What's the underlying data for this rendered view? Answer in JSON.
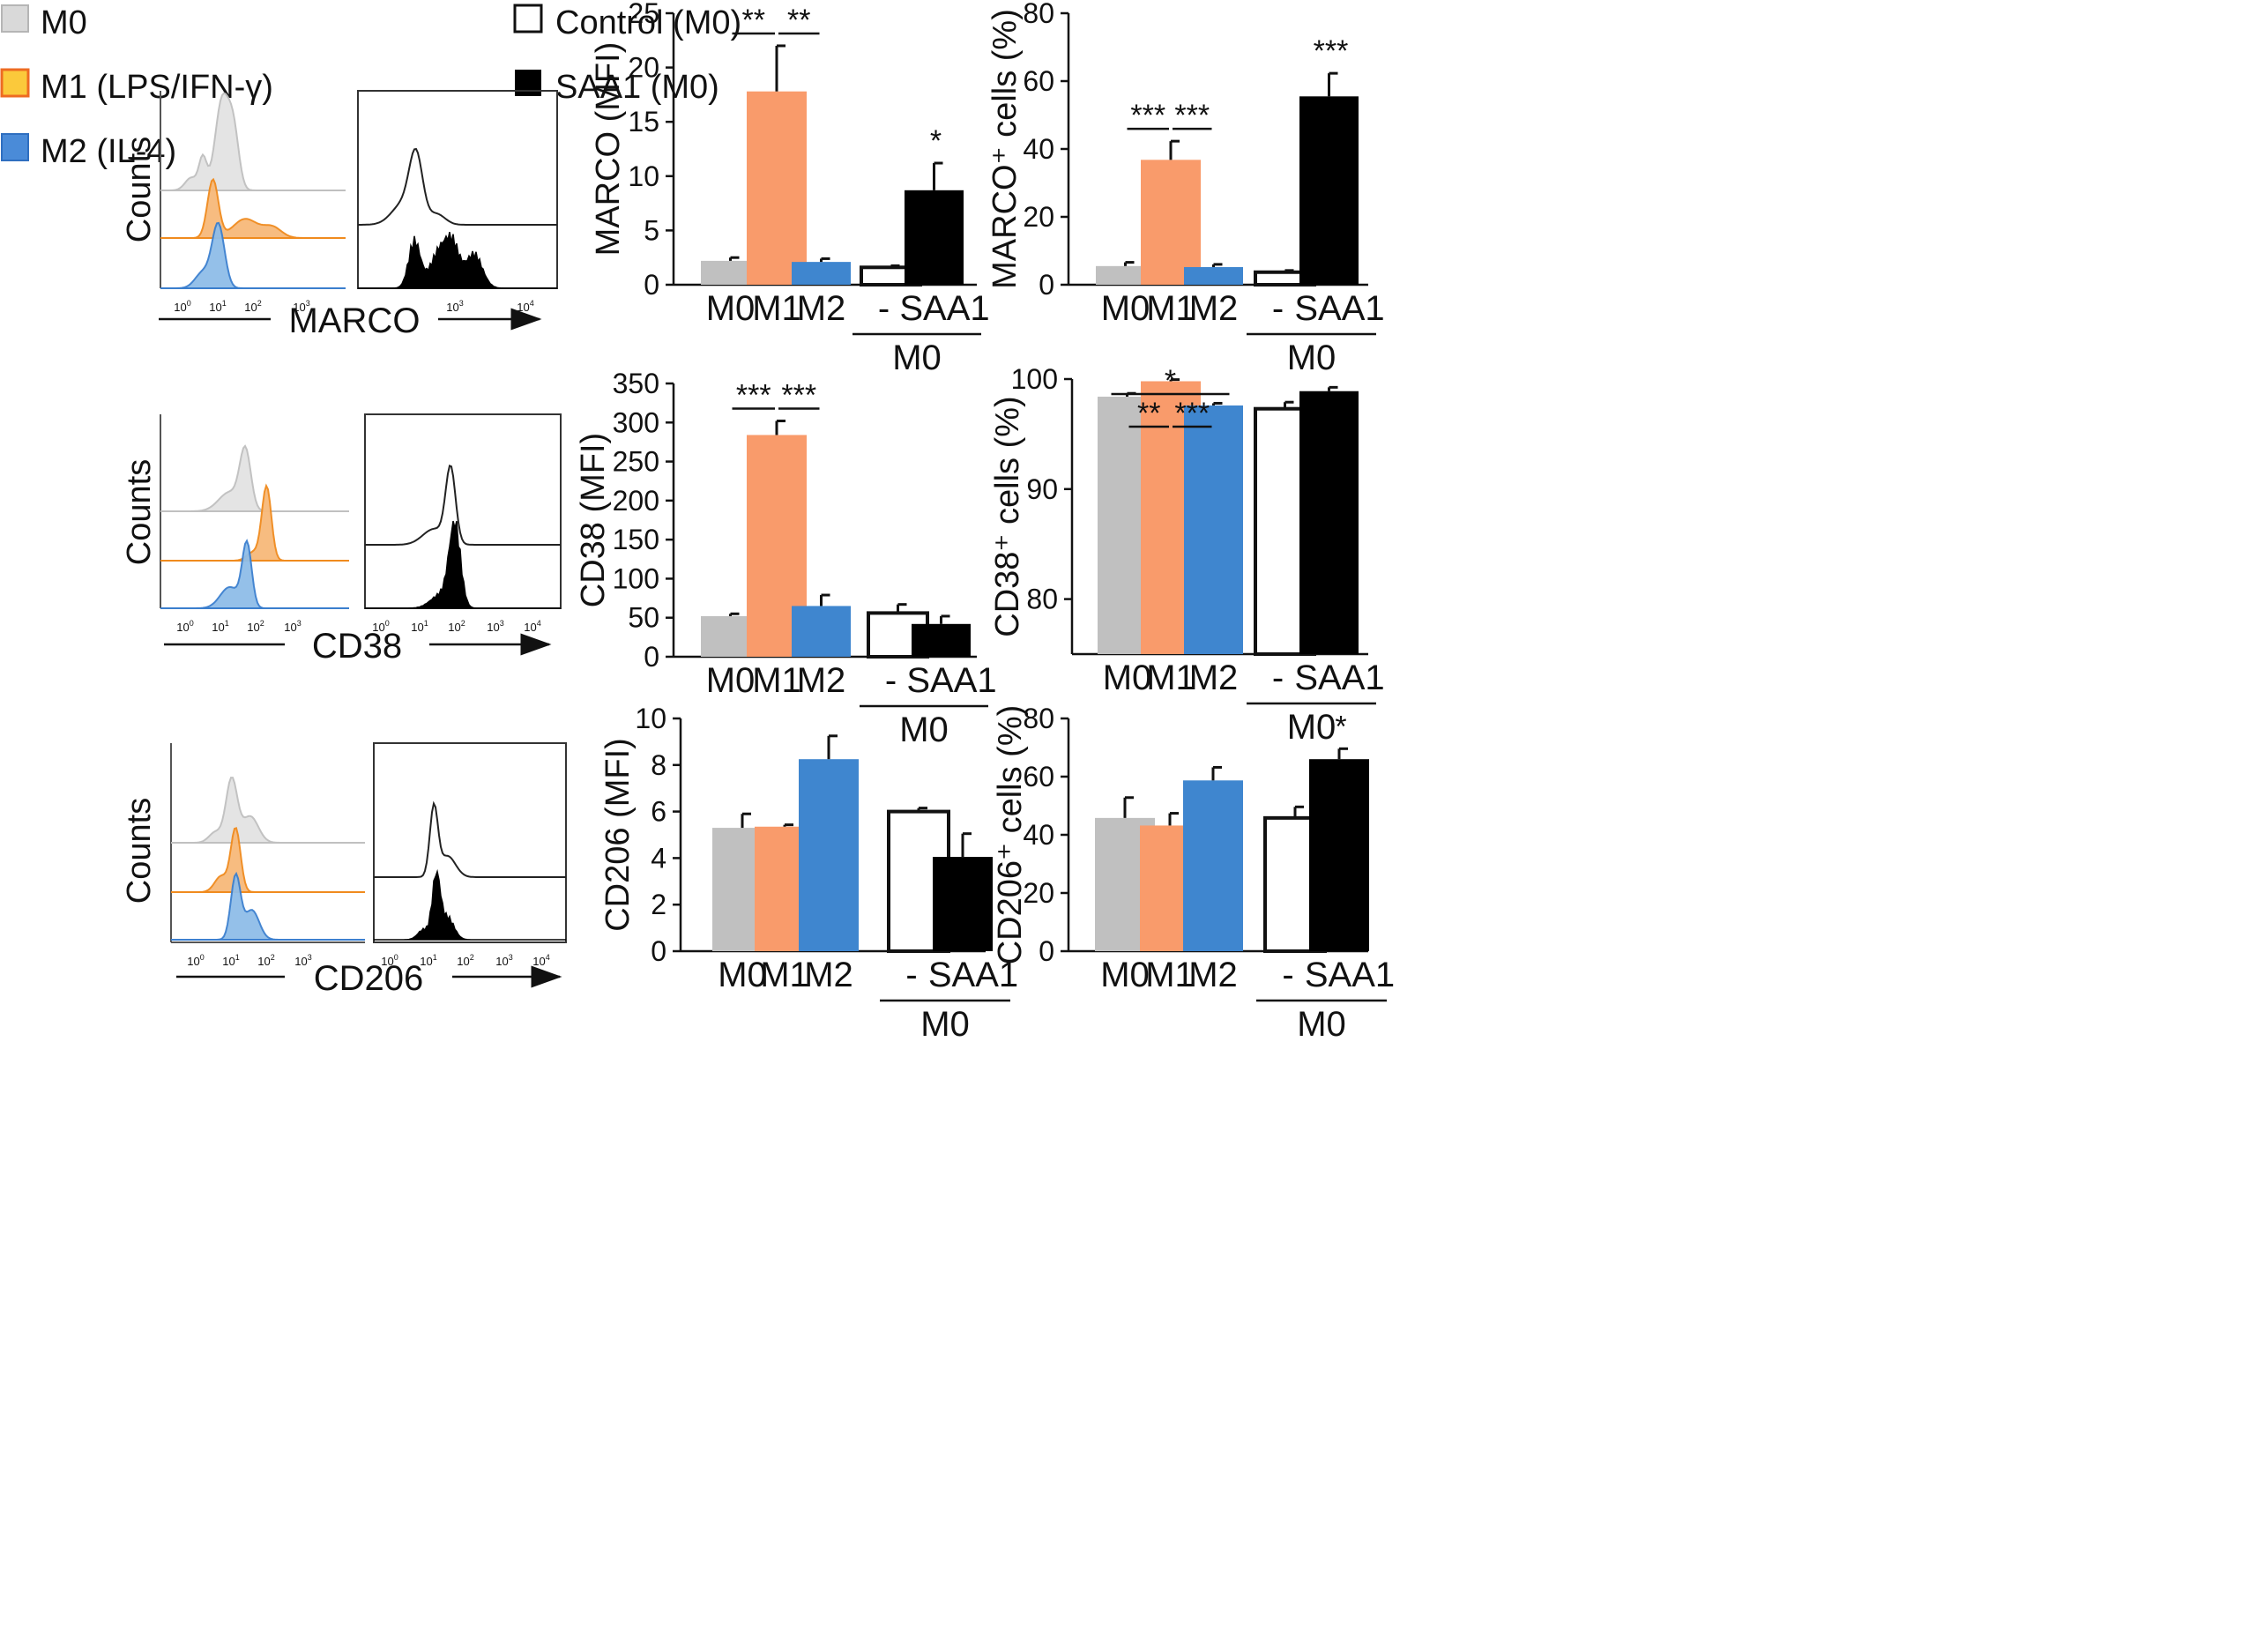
{
  "colors": {
    "M0": "#c0c0c0",
    "M1": "#f99b6b",
    "M2": "#3f86cf",
    "Control": "#ffffff",
    "SAA1": "#000000",
    "m1_outline": "#f08a1c",
    "m1_fill": "#f7b97a",
    "m0_fill": "#e3e3e3",
    "m2_fill": "#8fbde8"
  },
  "legend": {
    "items": [
      {
        "key": "M0",
        "label": "M0"
      },
      {
        "key": "M1",
        "label": "M1 (LPS/IFN-γ)"
      },
      {
        "key": "M2",
        "label": "M2 (IL-4)"
      },
      {
        "key": "Control",
        "label": "Control (M0)"
      },
      {
        "key": "SAA1",
        "label": "SAA1 (M0)"
      }
    ]
  },
  "histograms": [
    {
      "marker": "MARCO",
      "ylabel": "Counts",
      "ticks": [
        "10",
        "10",
        "10",
        "10",
        "10",
        "10"
      ],
      "exponents": [
        "0",
        "1",
        "2",
        "3",
        "3",
        "4"
      ]
    },
    {
      "marker": "CD38",
      "ylabel": "Counts",
      "ticks": [
        "10",
        "10",
        "10",
        "10",
        "10",
        "10",
        "10",
        "10",
        "10"
      ],
      "exponents": [
        "0",
        "1",
        "2",
        "3",
        "0",
        "1",
        "2",
        "3",
        "4"
      ]
    },
    {
      "marker": "CD206",
      "ylabel": "Counts",
      "ticks": [
        "10",
        "10",
        "10",
        "10",
        "10",
        "10",
        "10",
        "10",
        "10"
      ],
      "exponents": [
        "0",
        "1",
        "2",
        "3",
        "0",
        "1",
        "2",
        "3",
        "4"
      ]
    }
  ],
  "chart_data": [
    {
      "id": "marco-mfi",
      "type": "bar",
      "ylabel": "MARCO (MFI)",
      "ylim": [
        0,
        25
      ],
      "yticks": [
        0,
        5,
        10,
        15,
        20,
        25
      ],
      "categories": [
        "M0",
        "M1",
        "M2",
        "-",
        "SAA1"
      ],
      "group_label": "M0",
      "values": [
        2.2,
        17.8,
        2.1,
        1.6,
        8.7
      ],
      "errors": [
        0.3,
        4.2,
        0.3,
        0.15,
        2.5
      ],
      "significance": [
        {
          "from": 0,
          "to": 1,
          "label": "**"
        },
        {
          "from": 1,
          "to": 2,
          "label": "**"
        },
        {
          "over": 4,
          "label": "*"
        }
      ]
    },
    {
      "id": "marco-pct",
      "type": "bar",
      "ylabel": "MARCO⁺ cells (%)",
      "ylim": [
        0,
        80
      ],
      "yticks": [
        0,
        20,
        40,
        60,
        80
      ],
      "categories": [
        "M0",
        "M1",
        "M2",
        "-",
        "SAA1"
      ],
      "group_label": "M0",
      "values": [
        5.5,
        36.8,
        5.2,
        3.7,
        55.5
      ],
      "errors": [
        1.1,
        5.5,
        0.8,
        0.5,
        6.8
      ],
      "significance": [
        {
          "from": 0,
          "to": 1,
          "label": "***"
        },
        {
          "from": 1,
          "to": 2,
          "label": "***"
        },
        {
          "over": 4,
          "label": "***"
        }
      ]
    },
    {
      "id": "cd38-mfi",
      "type": "bar",
      "ylabel": "CD38 (MFI)",
      "ylim": [
        0,
        350
      ],
      "yticks": [
        0,
        50,
        100,
        150,
        200,
        250,
        300,
        350
      ],
      "categories": [
        "M0",
        "M1",
        "M2",
        "-",
        "SAA1"
      ],
      "group_label": "M0",
      "values": [
        52,
        284,
        65,
        56,
        42
      ],
      "errors": [
        3,
        18,
        14,
        11,
        10
      ],
      "significance": [
        {
          "from": 0,
          "to": 1,
          "label": "***"
        },
        {
          "from": 1,
          "to": 2,
          "label": "***"
        }
      ]
    },
    {
      "id": "cd38-pct",
      "type": "bar",
      "ylabel": "CD38⁺ cells (%)",
      "ylim": [
        75,
        100
      ],
      "yticks": [
        80,
        90,
        100
      ],
      "categories": [
        "M0",
        "M1",
        "M2",
        "-",
        "SAA1"
      ],
      "group_label": "M0",
      "values": [
        98.4,
        99.8,
        97.6,
        97.3,
        98.9
      ],
      "errors": [
        0.3,
        0.15,
        0.2,
        0.6,
        0.35
      ],
      "significance": [
        {
          "from": 0,
          "to": 2,
          "label": "*"
        },
        {
          "from": 0,
          "to": 1,
          "label": "**"
        },
        {
          "from": 1,
          "to": 2,
          "label": "***"
        }
      ]
    },
    {
      "id": "cd206-mfi",
      "type": "bar",
      "ylabel": "CD206 (MFI)",
      "ylim": [
        0,
        10
      ],
      "yticks": [
        0,
        2,
        4,
        6,
        8,
        10
      ],
      "categories": [
        "M0",
        "M1",
        "M2",
        "-",
        "SAA1"
      ],
      "group_label": "M0",
      "values": [
        5.3,
        5.35,
        8.25,
        6.0,
        4.05
      ],
      "errors": [
        0.6,
        0.08,
        1.0,
        0.15,
        1.0
      ],
      "significance": []
    },
    {
      "id": "cd206-pct",
      "type": "bar",
      "ylabel": "CD206⁺ cells (%)",
      "ylim": [
        0,
        80
      ],
      "yticks": [
        0,
        20,
        40,
        60,
        80
      ],
      "categories": [
        "M0",
        "M1",
        "M2",
        "-",
        "SAA1"
      ],
      "group_label": "M0",
      "values": [
        45.8,
        43.2,
        58.7,
        45.8,
        66.0
      ],
      "errors": [
        7.0,
        4.2,
        4.5,
        3.8,
        3.6
      ],
      "significance": [
        {
          "over": 4,
          "label": "*"
        }
      ]
    }
  ]
}
